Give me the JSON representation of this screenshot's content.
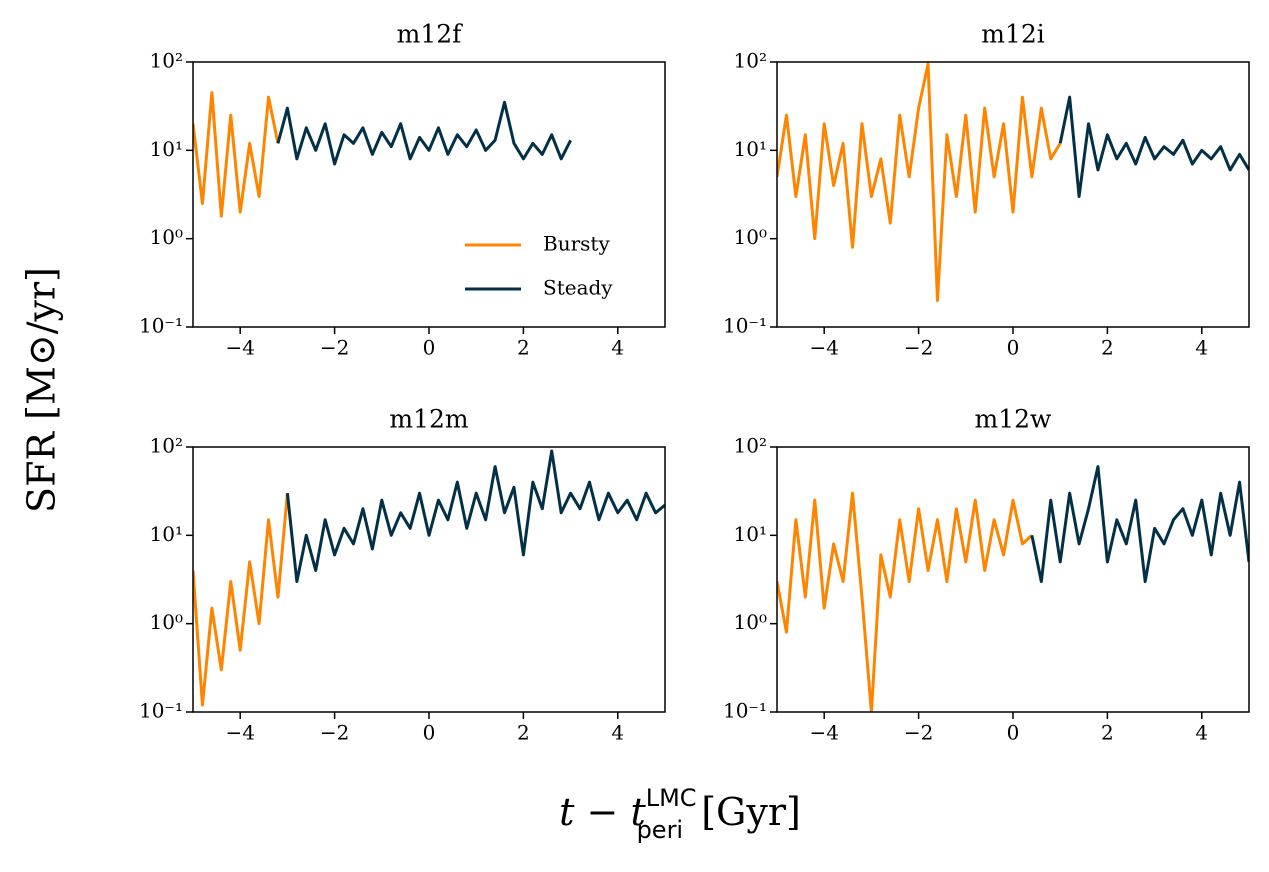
{
  "xlabel": {
    "main": "t − t",
    "sup": "LMC",
    "sub": "peri",
    "unit": " [Gyr]"
  },
  "ylabel": "SFR [M⊙/yr]",
  "chart_data": [
    {
      "type": "line",
      "title": "m12f",
      "yscale": "log",
      "legend": "lower right",
      "xlim": [
        -5,
        5
      ],
      "ylim": [
        0.1,
        100
      ],
      "xticks": [
        {
          "value": -4,
          "label": "−4"
        },
        {
          "value": -2,
          "label": "−2"
        },
        0,
        2,
        4
      ],
      "yticks": [
        {
          "value": 0.1,
          "label": "10⁻¹"
        },
        {
          "value": 1,
          "label": "10⁰"
        },
        {
          "value": 10,
          "label": "10¹"
        },
        {
          "value": 100,
          "label": "10²"
        }
      ],
      "x": [
        -5.0,
        -4.8,
        -4.6,
        -4.4,
        -4.2,
        -4.0,
        -3.8,
        -3.6,
        -3.4,
        -3.2,
        -3.0,
        -2.8,
        -2.6,
        -2.4,
        -2.2,
        -2.0,
        -1.8,
        -1.6,
        -1.4,
        -1.2,
        -1.0,
        -0.8,
        -0.6,
        -0.4,
        -0.2,
        0,
        0.2,
        0.4,
        0.6,
        0.8,
        1.0,
        1.2,
        1.4,
        1.6,
        1.8,
        2.0,
        2.2,
        2.4,
        2.6,
        2.8,
        3.0,
        3.2,
        3.4,
        3.6,
        3.8,
        4.0,
        4.2,
        4.4,
        4.6,
        4.8,
        5.0
      ],
      "series": [
        {
          "name": "Bursty",
          "color": "#ff8400",
          "values": [
            20,
            2.5,
            45,
            1.8,
            25,
            2,
            12,
            3,
            40,
            12,
            null,
            null,
            null,
            null,
            null,
            null,
            null,
            null,
            null,
            null,
            null,
            null,
            null,
            null,
            null,
            null,
            null,
            null,
            null,
            null,
            null,
            null,
            null,
            null,
            null,
            null,
            null,
            null,
            null,
            null,
            null,
            null,
            null,
            null,
            null,
            null,
            null,
            null,
            null,
            null,
            null
          ]
        },
        {
          "name": "Steady",
          "color": "#033047",
          "values": [
            null,
            null,
            null,
            null,
            null,
            null,
            null,
            null,
            null,
            12,
            30,
            8,
            18,
            10,
            20,
            7,
            15,
            12,
            18,
            9,
            16,
            11,
            20,
            8,
            14,
            10,
            18,
            9,
            15,
            11,
            17,
            10,
            13,
            35,
            12,
            8,
            12,
            9,
            15,
            8,
            13,
            null,
            null,
            null,
            null,
            null,
            null,
            null,
            null,
            null,
            null
          ]
        }
      ]
    },
    {
      "type": "line",
      "title": "m12i",
      "yscale": "log",
      "xlim": [
        -5,
        5
      ],
      "ylim": [
        0.1,
        100
      ],
      "xticks": [
        {
          "value": -4,
          "label": "−4"
        },
        {
          "value": -2,
          "label": "−2"
        },
        0,
        2,
        4
      ],
      "yticks": [
        {
          "value": 0.1,
          "label": "10⁻¹"
        },
        {
          "value": 1,
          "label": "10⁰"
        },
        {
          "value": 10,
          "label": "10¹"
        },
        {
          "value": 100,
          "label": "10²"
        }
      ],
      "x": [
        -5.0,
        -4.8,
        -4.6,
        -4.4,
        -4.2,
        -4.0,
        -3.8,
        -3.6,
        -3.4,
        -3.2,
        -3.0,
        -2.8,
        -2.6,
        -2.4,
        -2.2,
        -2.0,
        -1.8,
        -1.6,
        -1.4,
        -1.2,
        -1.0,
        -0.8,
        -0.6,
        -0.4,
        -0.2,
        0,
        0.2,
        0.4,
        0.6,
        0.8,
        1.0,
        1.2,
        1.4,
        1.6,
        1.8,
        2.0,
        2.2,
        2.4,
        2.6,
        2.8,
        3.0,
        3.2,
        3.4,
        3.6,
        3.8,
        4.0,
        4.2,
        4.4,
        4.6,
        4.8,
        5.0
      ],
      "series": [
        {
          "color": "#ff8400",
          "values": [
            5,
            25,
            3,
            15,
            1,
            20,
            4,
            12,
            0.8,
            20,
            3,
            8,
            1.5,
            25,
            5,
            30,
            95,
            0.2,
            15,
            3,
            25,
            2,
            30,
            5,
            20,
            2,
            40,
            5,
            30,
            8,
            12,
            null,
            null,
            null,
            null,
            null,
            null,
            null,
            null,
            null,
            null,
            null,
            null,
            null,
            null,
            null,
            null,
            null,
            null,
            null,
            null
          ]
        },
        {
          "color": "#033047",
          "values": [
            null,
            null,
            null,
            null,
            null,
            null,
            null,
            null,
            null,
            null,
            null,
            null,
            null,
            null,
            null,
            null,
            null,
            null,
            null,
            null,
            null,
            null,
            null,
            null,
            null,
            null,
            null,
            null,
            null,
            null,
            12,
            40,
            3,
            20,
            6,
            15,
            8,
            12,
            7,
            14,
            8,
            11,
            9,
            13,
            7,
            10,
            8,
            11,
            6,
            9,
            6
          ]
        }
      ]
    },
    {
      "type": "line",
      "title": "m12m",
      "yscale": "log",
      "xlim": [
        -5,
        5
      ],
      "ylim": [
        0.1,
        100
      ],
      "xticks": [
        {
          "value": -4,
          "label": "−4"
        },
        {
          "value": -2,
          "label": "−2"
        },
        0,
        2,
        4
      ],
      "yticks": [
        {
          "value": 0.1,
          "label": "10⁻¹"
        },
        {
          "value": 1,
          "label": "10⁰"
        },
        {
          "value": 10,
          "label": "10¹"
        },
        {
          "value": 100,
          "label": "10²"
        }
      ],
      "x": [
        -5.0,
        -4.8,
        -4.6,
        -4.4,
        -4.2,
        -4.0,
        -3.8,
        -3.6,
        -3.4,
        -3.2,
        -3.0,
        -2.8,
        -2.6,
        -2.4,
        -2.2,
        -2.0,
        -1.8,
        -1.6,
        -1.4,
        -1.2,
        -1.0,
        -0.8,
        -0.6,
        -0.4,
        -0.2,
        0,
        0.2,
        0.4,
        0.6,
        0.8,
        1.0,
        1.2,
        1.4,
        1.6,
        1.8,
        2.0,
        2.2,
        2.4,
        2.6,
        2.8,
        3.0,
        3.2,
        3.4,
        3.6,
        3.8,
        4.0,
        4.2,
        4.4,
        4.6,
        4.8,
        5.0
      ],
      "series": [
        {
          "color": "#ff8400",
          "values": [
            4,
            0.12,
            1.5,
            0.3,
            3,
            0.5,
            5,
            1,
            15,
            2,
            30,
            null,
            null,
            null,
            null,
            null,
            null,
            null,
            null,
            null,
            null,
            null,
            null,
            null,
            null,
            null,
            null,
            null,
            null,
            null,
            null,
            null,
            null,
            null,
            null,
            null,
            null,
            null,
            null,
            null,
            null,
            null,
            null,
            null,
            null,
            null,
            null,
            null,
            null,
            null,
            null
          ]
        },
        {
          "color": "#033047",
          "values": [
            null,
            null,
            null,
            null,
            null,
            null,
            null,
            null,
            null,
            null,
            30,
            3,
            10,
            4,
            15,
            6,
            12,
            8,
            20,
            7,
            25,
            10,
            18,
            12,
            30,
            10,
            25,
            15,
            40,
            12,
            30,
            15,
            60,
            18,
            35,
            6,
            40,
            20,
            90,
            18,
            30,
            20,
            40,
            15,
            30,
            18,
            25,
            15,
            30,
            18,
            22
          ]
        }
      ]
    },
    {
      "type": "line",
      "title": "m12w",
      "yscale": "log",
      "xlim": [
        -5,
        5
      ],
      "ylim": [
        0.1,
        100
      ],
      "xticks": [
        {
          "value": -4,
          "label": "−4"
        },
        {
          "value": -2,
          "label": "−2"
        },
        0,
        2,
        4
      ],
      "yticks": [
        {
          "value": 0.1,
          "label": "10⁻¹"
        },
        {
          "value": 1,
          "label": "10⁰"
        },
        {
          "value": 10,
          "label": "10¹"
        },
        {
          "value": 100,
          "label": "10²"
        }
      ],
      "x": [
        -5.0,
        -4.8,
        -4.6,
        -4.4,
        -4.2,
        -4.0,
        -3.8,
        -3.6,
        -3.4,
        -3.2,
        -3.0,
        -2.8,
        -2.6,
        -2.4,
        -2.2,
        -2.0,
        -1.8,
        -1.6,
        -1.4,
        -1.2,
        -1.0,
        -0.8,
        -0.6,
        -0.4,
        -0.2,
        0,
        0.2,
        0.4,
        0.6,
        0.8,
        1.0,
        1.2,
        1.4,
        1.6,
        1.8,
        2.0,
        2.2,
        2.4,
        2.6,
        2.8,
        3.0,
        3.2,
        3.4,
        3.6,
        3.8,
        4.0,
        4.2,
        4.4,
        4.6,
        4.8,
        5.0
      ],
      "series": [
        {
          "color": "#ff8400",
          "values": [
            3,
            0.8,
            15,
            2,
            25,
            1.5,
            8,
            3,
            30,
            2,
            0.1,
            6,
            2,
            15,
            3,
            20,
            4,
            15,
            3,
            20,
            5,
            25,
            4,
            15,
            6,
            25,
            8,
            10,
            null,
            null,
            null,
            null,
            null,
            null,
            null,
            null,
            null,
            null,
            null,
            null,
            null,
            null,
            null,
            null,
            null,
            null,
            null,
            null,
            null,
            null,
            null
          ]
        },
        {
          "color": "#033047",
          "values": [
            null,
            null,
            null,
            null,
            null,
            null,
            null,
            null,
            null,
            null,
            null,
            null,
            null,
            null,
            null,
            null,
            null,
            null,
            null,
            null,
            null,
            null,
            null,
            null,
            null,
            null,
            null,
            10,
            3,
            25,
            5,
            30,
            8,
            20,
            60,
            5,
            15,
            8,
            25,
            3,
            12,
            8,
            15,
            20,
            10,
            25,
            6,
            30,
            10,
            40,
            5
          ]
        }
      ]
    }
  ]
}
